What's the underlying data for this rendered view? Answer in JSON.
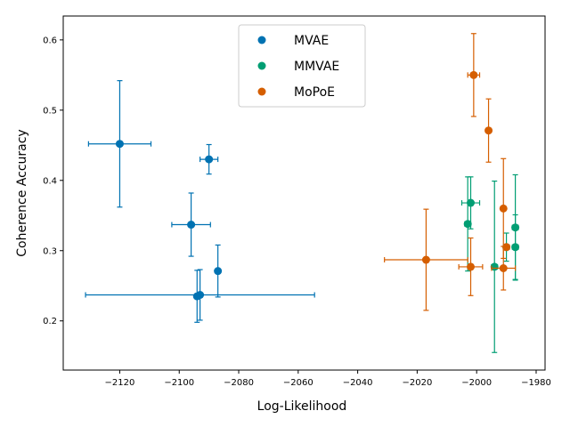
{
  "chart_data": {
    "type": "scatter",
    "title": "",
    "xlabel": "Log-Likelihood",
    "ylabel": "Coherence Accuracy",
    "xlim": [
      -2139,
      -1977
    ],
    "ylim": [
      0.13,
      0.634
    ],
    "xticks": [
      -2120,
      -2100,
      -2080,
      -2060,
      -2040,
      -2020,
      -2000,
      -1980
    ],
    "xtick_labels": [
      "−2120",
      "−2100",
      "−2080",
      "−2060",
      "−2040",
      "−2020",
      "−2000",
      "−1980"
    ],
    "yticks": [
      0.2,
      0.3,
      0.4,
      0.5,
      0.6
    ],
    "ytick_labels": [
      "0.2",
      "0.3",
      "0.4",
      "0.5",
      "0.6"
    ],
    "grid": false,
    "legend_position": "top-center",
    "series": [
      {
        "name": "MVAE",
        "color": "#0072b2",
        "points": [
          {
            "x": -2120,
            "y": 0.452,
            "xerr": 10.5,
            "yerr": 0.09
          },
          {
            "x": -2090,
            "y": 0.43,
            "xerr": 3.0,
            "yerr": 0.021
          },
          {
            "x": -2096,
            "y": 0.337,
            "xerr": 6.5,
            "yerr": 0.045
          },
          {
            "x": -2087,
            "y": 0.271,
            "xerr": 0.0,
            "yerr": 0.037
          },
          {
            "x": -2093,
            "y": 0.237,
            "xerr": 38.5,
            "yerr": 0.036
          },
          {
            "x": -2094,
            "y": 0.235,
            "xerr": 0.0,
            "yerr": 0.037
          }
        ]
      },
      {
        "name": "MMVAE",
        "color": "#009e73",
        "points": [
          {
            "x": -2002,
            "y": 0.368,
            "xerr": 3.0,
            "yerr": 0.037
          },
          {
            "x": -2003,
            "y": 0.338,
            "xerr": 1.0,
            "yerr": 0.067
          },
          {
            "x": -1987,
            "y": 0.333,
            "xerr": 1.0,
            "yerr": 0.075
          },
          {
            "x": -1990,
            "y": 0.305,
            "xerr": 1.0,
            "yerr": 0.02
          },
          {
            "x": -1987,
            "y": 0.305,
            "xerr": 1.0,
            "yerr": 0.046
          },
          {
            "x": -1994,
            "y": 0.277,
            "xerr": 1.0,
            "yerr": 0.122
          }
        ]
      },
      {
        "name": "MoPoE",
        "color": "#d55e00",
        "points": [
          {
            "x": -2001,
            "y": 0.55,
            "xerr": 2.0,
            "yerr": 0.059
          },
          {
            "x": -1996,
            "y": 0.471,
            "xerr": 0.5,
            "yerr": 0.045
          },
          {
            "x": -1991,
            "y": 0.36,
            "xerr": 0.5,
            "yerr": 0.071
          },
          {
            "x": -1990,
            "y": 0.305,
            "xerr": 1.0,
            "yerr": 0.0
          },
          {
            "x": -2017,
            "y": 0.287,
            "xerr": 14.0,
            "yerr": 0.072
          },
          {
            "x": -2002,
            "y": 0.277,
            "xerr": 4.0,
            "yerr": 0.041
          },
          {
            "x": -1991,
            "y": 0.275,
            "xerr": 4.0,
            "yerr": 0.031
          }
        ]
      }
    ]
  }
}
